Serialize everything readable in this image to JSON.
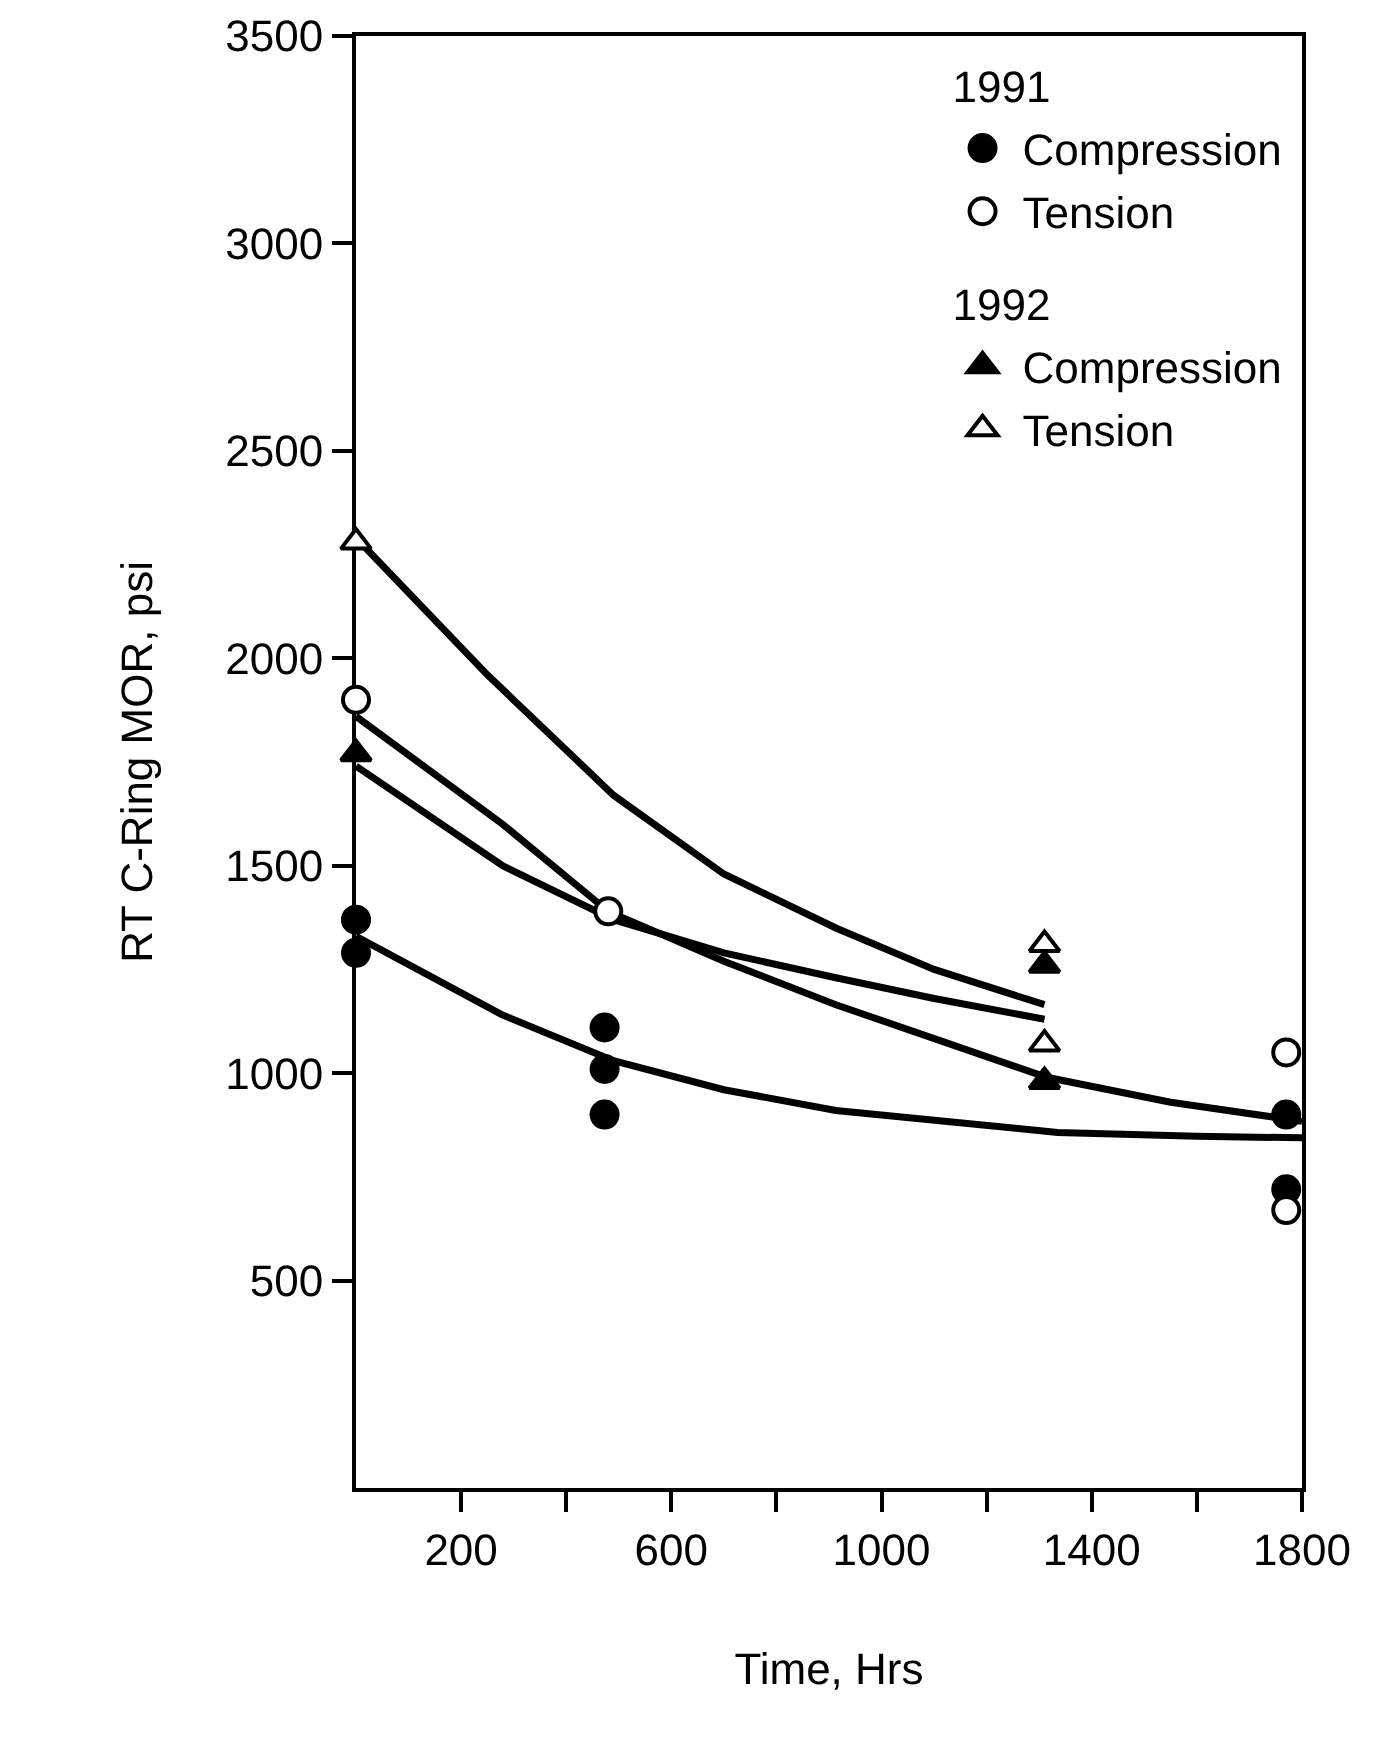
{
  "chart_data": {
    "type": "scatter",
    "xlabel": "Time, Hrs",
    "ylabel": "RT C-Ring MOR, psi",
    "annotations": [
      "1991",
      "1992"
    ],
    "xlim": [
      0,
      1800
    ],
    "ylim": [
      0,
      3500
    ],
    "xticks": [
      200,
      {
        "value": 400,
        "label": null
      },
      600,
      {
        "value": 800,
        "label": null
      },
      1000,
      {
        "value": 1200,
        "label": null
      },
      1400,
      {
        "value": 1600,
        "label": null
      },
      1800
    ],
    "yticks": [
      500,
      1000,
      1500,
      2000,
      2500,
      3000,
      3500
    ],
    "grid": false,
    "legend": "top right",
    "series": [
      {
        "name": "Compression",
        "color": "#000000",
        "marker": "circle",
        "x": [
          0,
          0,
          473,
          473,
          473,
          1770,
          1770
        ],
        "values": [
          1370,
          1290,
          1110,
          1010,
          900,
          900,
          720
        ]
      },
      {
        "name": "Tension",
        "color": "#ffffff",
        "marker": "circle",
        "x": [
          0,
          480,
          1770,
          1770
        ],
        "values": [
          1900,
          1390,
          1050,
          670
        ]
      },
      {
        "name": "Compression",
        "color": "#000000",
        "marker": "triangle",
        "x": [
          0,
          1310,
          1310
        ],
        "values": [
          1770,
          1260,
          980
        ]
      },
      {
        "name": "Tension",
        "color": "#ffffff",
        "marker": "triangle",
        "x": [
          0,
          1310,
          1310
        ],
        "values": [
          2280,
          1310,
          1070
        ]
      },
      {
        "type": "line",
        "color": "#000000",
        "marker": "none",
        "x": [
          0,
          250,
          490,
          700,
          913,
          1100,
          1310
        ],
        "values": [
          2290,
          1960,
          1670,
          1480,
          1350,
          1250,
          1165
        ]
      },
      {
        "type": "line",
        "color": "#000000",
        "marker": "none",
        "x": [
          0,
          279,
          480,
          700,
          913,
          1314,
          1550,
          1800
        ],
        "values": [
          1860,
          1600,
          1390,
          1270,
          1165,
          990,
          930,
          884
        ]
      },
      {
        "type": "line",
        "color": "#000000",
        "marker": "none",
        "x": [
          0,
          279,
          490,
          700,
          913,
          1100,
          1310
        ],
        "values": [
          1740,
          1500,
          1370,
          1290,
          1230,
          1180,
          1130
        ]
      },
      {
        "type": "line",
        "color": "#000000",
        "marker": "none",
        "x": [
          0,
          279,
          490,
          700,
          913,
          1335,
          1600,
          1800
        ],
        "values": [
          1330,
          1140,
          1030,
          960,
          910,
          857,
          848,
          844
        ]
      }
    ]
  }
}
